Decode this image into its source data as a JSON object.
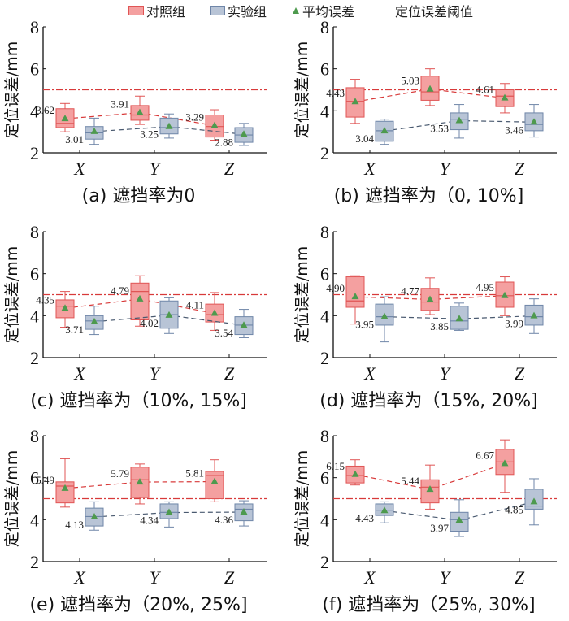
{
  "legend": {
    "control": "对照组",
    "experiment": "实验组",
    "mean": "平均误差",
    "threshold": "定位误差阈值"
  },
  "colors": {
    "control_fill": "#f4a0a0",
    "control_edge": "#e05555",
    "experiment_fill": "#b8c4d6",
    "experiment_edge": "#6f86a8",
    "mean_marker": "#4e9a4e",
    "threshold_line": "#d83a3a",
    "control_dash": "#d83a3a",
    "experiment_dash": "#4a5a70"
  },
  "chart_data": [
    {
      "type": "box",
      "caption": "(a)  遮挡率为0",
      "ylabel": "定位误差/mm",
      "categories": [
        "X",
        "Y",
        "Z"
      ],
      "ylim": [
        2,
        8
      ],
      "yticks": [
        2,
        4,
        6,
        8
      ],
      "threshold": 5,
      "series": [
        {
          "name": "对照组",
          "boxes": [
            {
              "low": 3.0,
              "q1": 3.2,
              "median": 3.4,
              "q3": 4.1,
              "high": 4.35,
              "mean": 3.62
            },
            {
              "low": 3.35,
              "q1": 3.55,
              "median": 3.8,
              "q3": 4.25,
              "high": 4.7,
              "mean": 3.91
            },
            {
              "low": 2.6,
              "q1": 2.75,
              "median": 3.25,
              "q3": 3.8,
              "high": 4.05,
              "mean": 3.29
            }
          ],
          "mean_labels": [
            "3.62",
            "3.91",
            "3.29"
          ]
        },
        {
          "name": "实验组",
          "boxes": [
            {
              "low": 2.4,
              "q1": 2.65,
              "median": 2.95,
              "q3": 3.25,
              "high": 3.65,
              "mean": 3.01
            },
            {
              "low": 2.7,
              "q1": 2.9,
              "median": 3.2,
              "q3": 3.65,
              "high": 3.85,
              "mean": 3.25
            },
            {
              "low": 2.35,
              "q1": 2.5,
              "median": 2.85,
              "q3": 3.2,
              "high": 3.4,
              "mean": 2.88
            }
          ],
          "mean_labels": [
            "3.01",
            "3.25",
            "2.88"
          ]
        }
      ]
    },
    {
      "type": "box",
      "caption": "(b)  遮挡率为（0, 10%]",
      "ylabel": "定位误差/mm",
      "categories": [
        "X",
        "Y",
        "Z"
      ],
      "ylim": [
        2,
        8
      ],
      "yticks": [
        2,
        4,
        6,
        8
      ],
      "threshold": 5,
      "series": [
        {
          "name": "对照组",
          "boxes": [
            {
              "low": 3.4,
              "q1": 3.7,
              "median": 4.45,
              "q3": 5.1,
              "high": 5.5,
              "mean": 4.43
            },
            {
              "low": 4.25,
              "q1": 4.5,
              "median": 4.9,
              "q3": 5.65,
              "high": 6.0,
              "mean": 5.03
            },
            {
              "low": 3.9,
              "q1": 4.2,
              "median": 4.7,
              "q3": 5.0,
              "high": 5.3,
              "mean": 4.61
            }
          ],
          "mean_labels": [
            "4.43",
            "5.03",
            "4.61"
          ]
        },
        {
          "name": "实验组",
          "boxes": [
            {
              "low": 2.4,
              "q1": 2.55,
              "median": 3.05,
              "q3": 3.5,
              "high": 3.6,
              "mean": 3.04
            },
            {
              "low": 2.7,
              "q1": 3.1,
              "median": 3.6,
              "q3": 3.9,
              "high": 4.3,
              "mean": 3.53
            },
            {
              "low": 2.75,
              "q1": 3.05,
              "median": 3.35,
              "q3": 3.9,
              "high": 4.3,
              "mean": 3.46
            }
          ],
          "mean_labels": [
            "3.04",
            "3.53",
            "3.46"
          ]
        }
      ]
    },
    {
      "type": "box",
      "caption": "(c)  遮挡率为（10%, 15%]",
      "ylabel": "定位误差/mm",
      "categories": [
        "X",
        "Y",
        "Z"
      ],
      "ylim": [
        2,
        8
      ],
      "yticks": [
        2,
        4,
        6,
        8
      ],
      "threshold": 5,
      "series": [
        {
          "name": "对照组",
          "boxes": [
            {
              "low": 3.45,
              "q1": 3.9,
              "median": 4.45,
              "q3": 4.75,
              "high": 5.15,
              "mean": 4.35
            },
            {
              "low": 3.5,
              "q1": 3.8,
              "median": 5.15,
              "q3": 5.55,
              "high": 5.9,
              "mean": 4.79
            },
            {
              "low": 3.3,
              "q1": 3.7,
              "median": 4.05,
              "q3": 4.55,
              "high": 5.1,
              "mean": 4.11
            }
          ],
          "mean_labels": [
            "4.35",
            "4.79",
            "4.11"
          ]
        },
        {
          "name": "实验组",
          "boxes": [
            {
              "low": 3.1,
              "q1": 3.35,
              "median": 3.75,
              "q3": 4.0,
              "high": 4.45,
              "mean": 3.71
            },
            {
              "low": 3.15,
              "q1": 3.4,
              "median": 4.05,
              "q3": 4.7,
              "high": 4.85,
              "mean": 4.02
            },
            {
              "low": 2.95,
              "q1": 3.1,
              "median": 3.55,
              "q3": 3.95,
              "high": 4.3,
              "mean": 3.54
            }
          ],
          "mean_labels": [
            "3.71",
            "4.02",
            "3.54"
          ]
        }
      ]
    },
    {
      "type": "box",
      "caption": "(d)  遮挡率为（15%, 20%]",
      "ylabel": "定位误差/mm",
      "categories": [
        "X",
        "Y",
        "Z"
      ],
      "ylim": [
        2,
        8
      ],
      "yticks": [
        2,
        4,
        6,
        8
      ],
      "threshold": 5,
      "series": [
        {
          "name": "对照组",
          "boxes": [
            {
              "low": 3.6,
              "q1": 4.4,
              "median": 4.7,
              "q3": 5.85,
              "high": 5.9,
              "mean": 4.9
            },
            {
              "low": 4.05,
              "q1": 4.25,
              "median": 4.65,
              "q3": 5.3,
              "high": 5.8,
              "mean": 4.77
            },
            {
              "low": 4.0,
              "q1": 4.4,
              "median": 4.95,
              "q3": 5.6,
              "high": 5.85,
              "mean": 4.95
            }
          ],
          "mean_labels": [
            "4.90",
            "4.77",
            "4.95"
          ]
        },
        {
          "name": "实验组",
          "boxes": [
            {
              "low": 2.75,
              "q1": 3.55,
              "median": 3.95,
              "q3": 4.55,
              "high": 4.9,
              "mean": 3.95
            },
            {
              "low": 3.3,
              "q1": 3.35,
              "median": 3.75,
              "q3": 4.45,
              "high": 4.6,
              "mean": 3.85
            },
            {
              "low": 3.15,
              "q1": 3.55,
              "median": 3.95,
              "q3": 4.5,
              "high": 4.8,
              "mean": 3.99
            }
          ],
          "mean_labels": [
            "3.95",
            "3.85",
            "3.99"
          ]
        }
      ]
    },
    {
      "type": "box",
      "caption": "(e)  遮挡率为（20%, 25%]",
      "ylabel": "定位误差/mm",
      "categories": [
        "X",
        "Y",
        "Z"
      ],
      "ylim": [
        2,
        8
      ],
      "yticks": [
        2,
        4,
        6,
        8
      ],
      "threshold": 5,
      "series": [
        {
          "name": "对照组",
          "boxes": [
            {
              "low": 4.6,
              "q1": 4.8,
              "median": 5.6,
              "q3": 5.8,
              "high": 6.9,
              "mean": 5.49
            },
            {
              "low": 4.75,
              "q1": 5.05,
              "median": 5.9,
              "q3": 6.5,
              "high": 6.65,
              "mean": 5.79
            },
            {
              "low": 4.85,
              "q1": 5.0,
              "median": 6.1,
              "q3": 6.3,
              "high": 6.85,
              "mean": 5.81
            }
          ],
          "mean_labels": [
            "5.49",
            "5.79",
            "5.81"
          ]
        },
        {
          "name": "实验组",
          "boxes": [
            {
              "low": 3.5,
              "q1": 3.7,
              "median": 4.15,
              "q3": 4.55,
              "high": 4.85,
              "mean": 4.13
            },
            {
              "low": 3.65,
              "q1": 4.05,
              "median": 4.35,
              "q3": 4.75,
              "high": 4.85,
              "mean": 4.34
            },
            {
              "low": 3.7,
              "q1": 3.95,
              "median": 4.5,
              "q3": 4.75,
              "high": 4.9,
              "mean": 4.36
            }
          ],
          "mean_labels": [
            "4.13",
            "4.34",
            "4.36"
          ]
        }
      ]
    },
    {
      "type": "box",
      "caption": "(f)  遮挡率为（25%, 30%]",
      "ylabel": "定位误差/mm",
      "categories": [
        "X",
        "Y",
        "Z"
      ],
      "ylim": [
        2,
        8
      ],
      "yticks": [
        2,
        4,
        6,
        8
      ],
      "threshold": 5,
      "series": [
        {
          "name": "对照组",
          "boxes": [
            {
              "low": 5.65,
              "q1": 5.75,
              "median": 6.1,
              "q3": 6.55,
              "high": 6.85,
              "mean": 6.15
            },
            {
              "low": 4.5,
              "q1": 4.8,
              "median": 5.55,
              "q3": 5.9,
              "high": 6.6,
              "mean": 5.44
            },
            {
              "low": 5.3,
              "q1": 6.15,
              "median": 6.75,
              "q3": 7.35,
              "high": 7.8,
              "mean": 6.67
            }
          ],
          "mean_labels": [
            "6.15",
            "5.44",
            "6.67"
          ]
        },
        {
          "name": "实验组",
          "boxes": [
            {
              "low": 3.85,
              "q1": 4.2,
              "median": 4.45,
              "q3": 4.75,
              "high": 4.85,
              "mean": 4.43
            },
            {
              "low": 3.2,
              "q1": 3.45,
              "median": 4.0,
              "q3": 4.35,
              "high": 4.95,
              "mean": 3.97
            },
            {
              "low": 3.75,
              "q1": 4.5,
              "median": 4.65,
              "q3": 5.45,
              "high": 5.95,
              "mean": 4.85
            }
          ],
          "mean_labels": [
            "4.43",
            "3.97",
            "4.85"
          ]
        }
      ]
    }
  ]
}
